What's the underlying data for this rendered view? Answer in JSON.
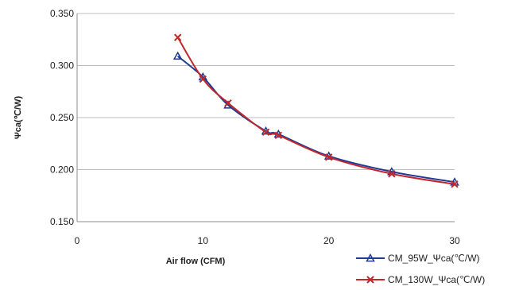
{
  "chart_data": {
    "type": "line",
    "title": "",
    "xlabel": "Air flow  (CFM)",
    "ylabel": "Ψca(℃/W)",
    "xlim": [
      0,
      30
    ],
    "ylim": [
      0.15,
      0.35
    ],
    "x_ticks": [
      "0",
      "10",
      "20",
      "30"
    ],
    "y_ticks": [
      "0.150",
      "0.200",
      "0.250",
      "0.300",
      "0.350"
    ],
    "grid": "horizontal",
    "legend_position": "bottom-right",
    "series": [
      {
        "name": "CM_95W_Ψca(℃/W)",
        "color": "#1f3a93",
        "marker": "triangle",
        "x": [
          8,
          10,
          12,
          15,
          16,
          20,
          25,
          30
        ],
        "y": [
          0.309,
          0.289,
          0.262,
          0.237,
          0.234,
          0.213,
          0.198,
          0.188
        ]
      },
      {
        "name": "CM_130W_Ψca(℃/W)",
        "color": "#c0282d",
        "marker": "x",
        "x": [
          8,
          10,
          12,
          15,
          16,
          20,
          25,
          30
        ],
        "y": [
          0.327,
          0.287,
          0.264,
          0.236,
          0.233,
          0.212,
          0.196,
          0.186
        ]
      }
    ]
  }
}
